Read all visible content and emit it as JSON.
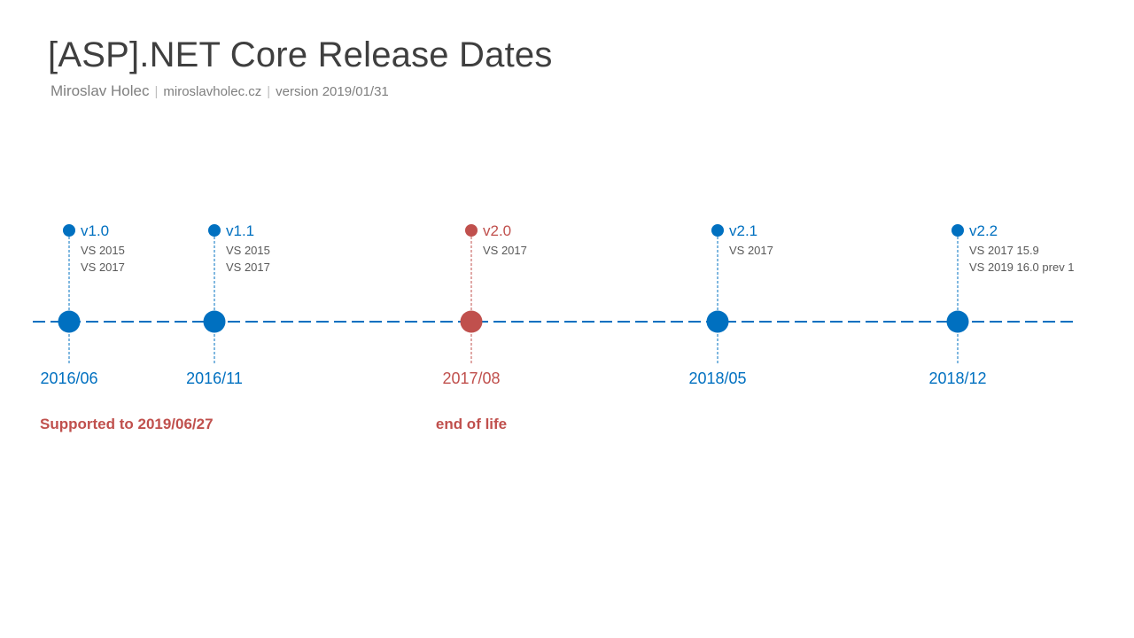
{
  "header": {
    "title": "[ASP].NET Core Release Dates",
    "author": "Miroslav Holec",
    "website": "miroslavholec.cz",
    "version": "version 2019/01/31"
  },
  "colors": {
    "active": "#0070c0",
    "eol": "#c0504d",
    "title": "#3f3f3f",
    "subtitle": "#7f7f7f",
    "vs_text": "#595959"
  },
  "releases": [
    {
      "version": "v1.0",
      "date": "2016/06",
      "tools": [
        "VS 2015",
        "VS 2017"
      ],
      "status": "active"
    },
    {
      "version": "v1.1",
      "date": "2016/11",
      "tools": [
        "VS 2015",
        "VS 2017"
      ],
      "status": "active"
    },
    {
      "version": "v2.0",
      "date": "2017/08",
      "tools": [
        "VS 2017"
      ],
      "status": "eol"
    },
    {
      "version": "v2.1",
      "date": "2018/05",
      "tools": [
        "VS 2017"
      ],
      "status": "active"
    },
    {
      "version": "v2.2",
      "date": "2018/12",
      "tools": [
        "VS 2017 15.9",
        "VS 2019 16.0 prev 1"
      ],
      "status": "active"
    }
  ],
  "notes": [
    {
      "text": "Supported to 2019/06/27",
      "release": "v1.0"
    },
    {
      "text": "end of life",
      "release": "v2.0"
    }
  ]
}
